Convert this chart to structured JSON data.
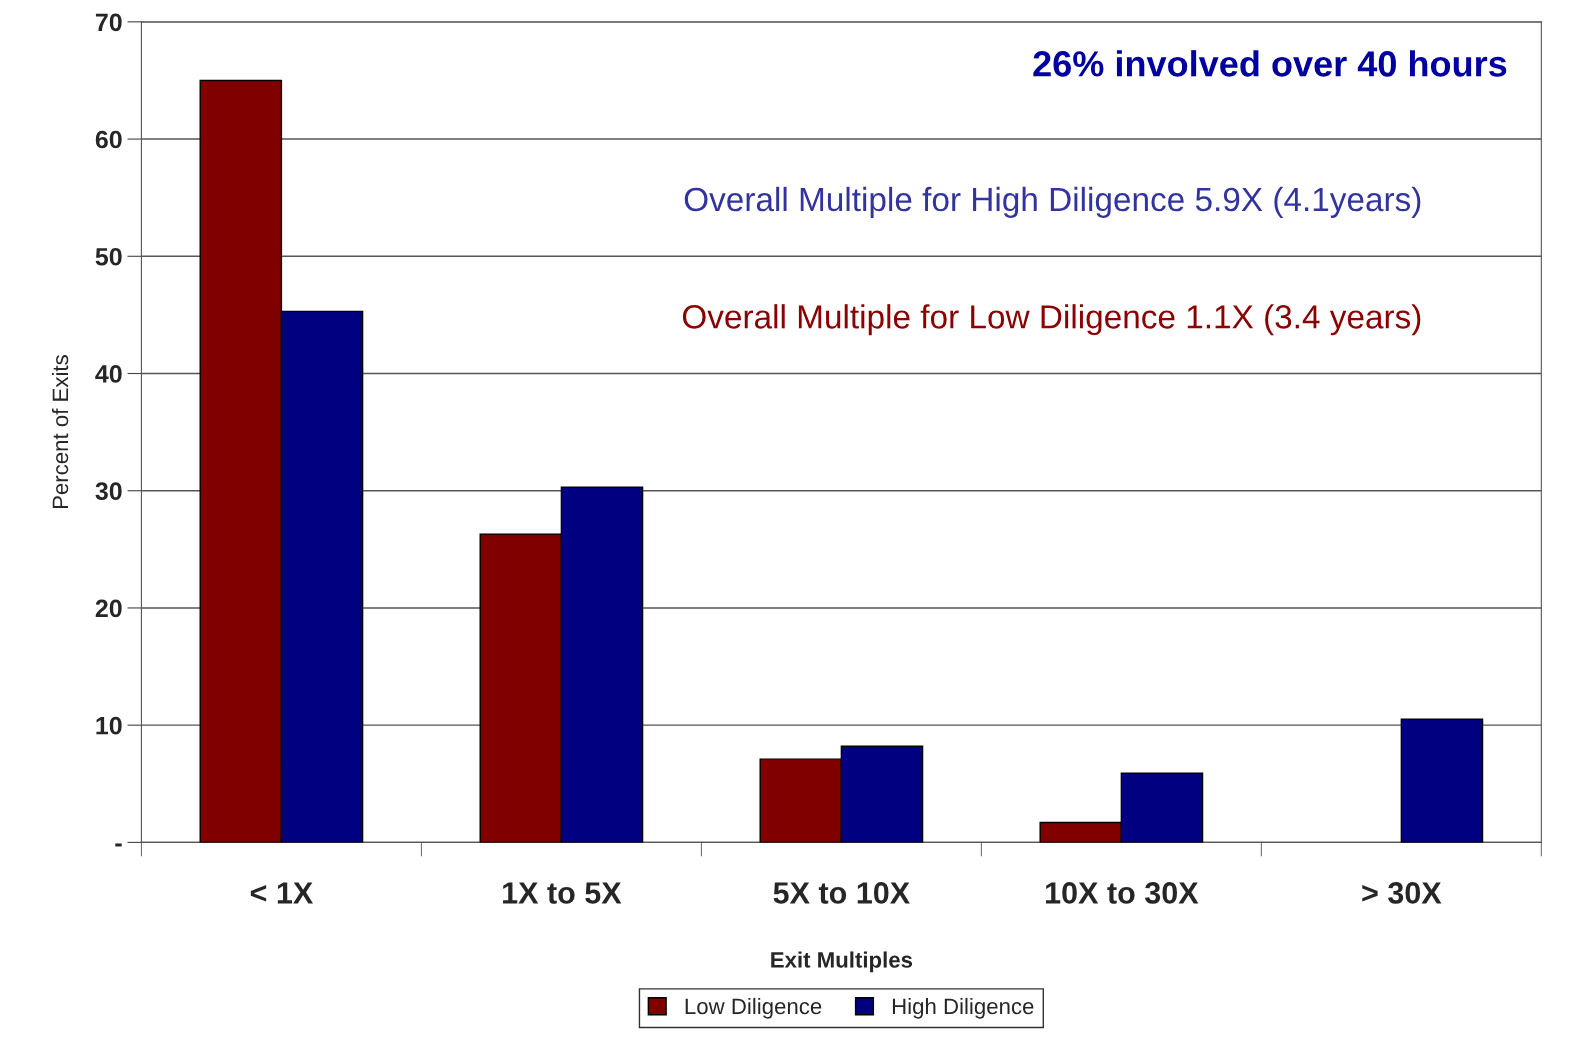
{
  "chart_data": {
    "type": "bar",
    "xlabel": "Exit Multiples",
    "ylabel": "Percent of Exits",
    "categories": [
      "< 1X",
      "1X to 5X",
      "5X to 10X",
      "10X to 30X",
      "> 30X"
    ],
    "series": [
      {
        "name": "Low Diligence",
        "color": "#800000",
        "values": [
          65.0,
          26.3,
          7.1,
          1.7,
          null
        ]
      },
      {
        "name": "High Diligence",
        "color": "#000080",
        "values": [
          45.3,
          30.3,
          8.2,
          5.9,
          10.5
        ]
      }
    ],
    "ylim": [
      0,
      70
    ],
    "yticks": [
      {
        "value": 0,
        "label": "-"
      },
      10,
      20,
      30,
      40,
      50,
      60,
      70
    ],
    "grid": "y",
    "legend": "bottom",
    "annotations": [
      "26% involved over 40 hours",
      "Overall Multiple for High Diligence 5.9X (4.1years)",
      "Overall Multiple for Low Diligence 1.1X (3.4 years)"
    ]
  }
}
